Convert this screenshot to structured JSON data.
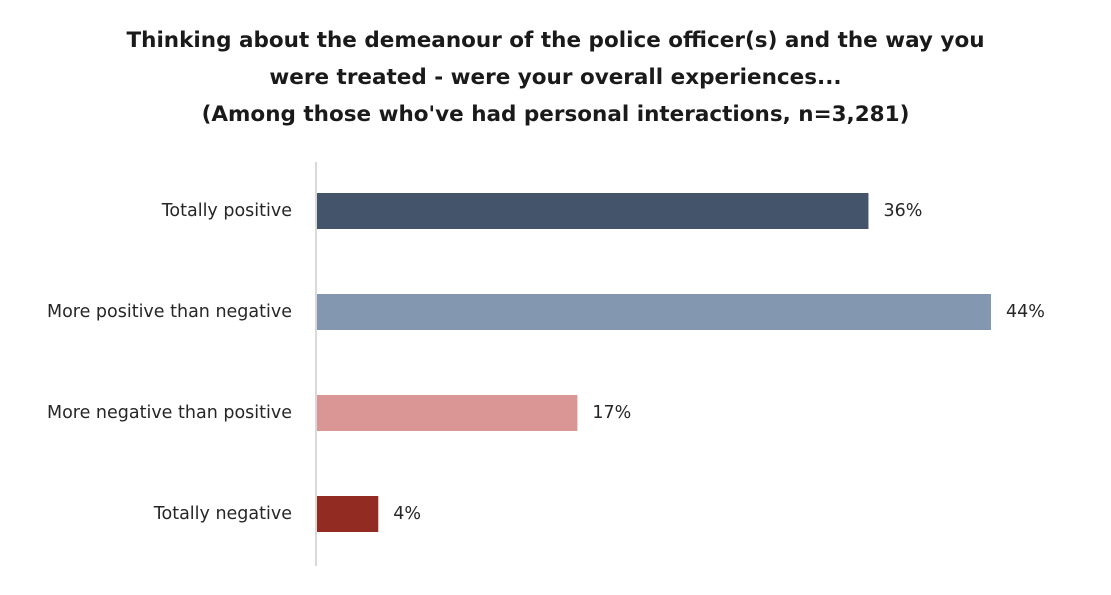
{
  "chart_data": {
    "type": "bar",
    "orientation": "horizontal",
    "title_lines": [
      "Thinking about the demeanour of the police officer(s) and the way you",
      "were treated - were your overall experiences...",
      "(Among those who've had personal interactions, n=3,281)"
    ],
    "categories": [
      "Totally positive",
      "More positive than negative",
      "More negative than positive",
      "Totally negative"
    ],
    "values": [
      36,
      44,
      17,
      4
    ],
    "value_labels": [
      "36%",
      "44%",
      "17%",
      "4%"
    ],
    "colors": [
      "#44546a",
      "#8497b0",
      "#da9694",
      "#922b21"
    ],
    "axis_color": "#d9d9d9",
    "xlim": [
      0,
      44
    ],
    "grid": false,
    "legend": "none"
  }
}
